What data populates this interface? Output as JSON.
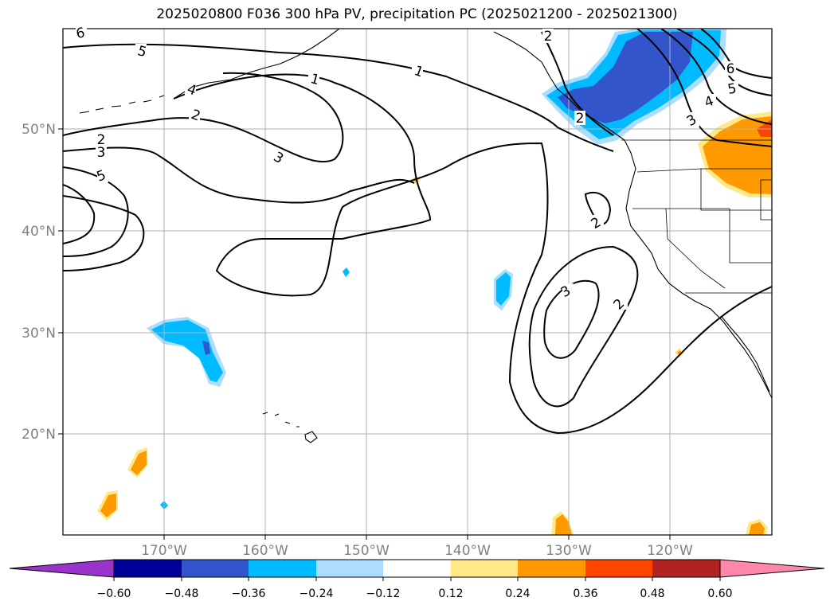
{
  "title": "2025020800 F036 300 hPa PV, precipitation PC (2025021200 - 2025021300)",
  "map": {
    "lat_labels": [
      "50°N",
      "40°N",
      "30°N",
      "20°N"
    ],
    "lon_labels": [
      "170°W",
      "160°W",
      "150°W",
      "140°W",
      "130°W",
      "120°W"
    ],
    "contour_labels": [
      "6",
      "5",
      "4",
      "2",
      "1",
      "1",
      "2",
      "3",
      "5",
      "3",
      "2",
      "6",
      "5",
      "4",
      "3",
      "2",
      "2",
      "3",
      "2"
    ],
    "contour_color": "#000000",
    "gridlines": true
  },
  "colorbar": {
    "ticks": [
      "−0.60",
      "−0.48",
      "−0.36",
      "−0.24",
      "−0.12",
      "0.12",
      "0.24",
      "0.36",
      "0.48",
      "0.60"
    ],
    "colors": [
      "#9933cc",
      "#000099",
      "#3355cc",
      "#00bbff",
      "#aaddff",
      "#ffffff",
      "#ffe888",
      "#ff9900",
      "#ff4400",
      "#b22222",
      "#ff88aa"
    ],
    "extend": "both"
  }
}
